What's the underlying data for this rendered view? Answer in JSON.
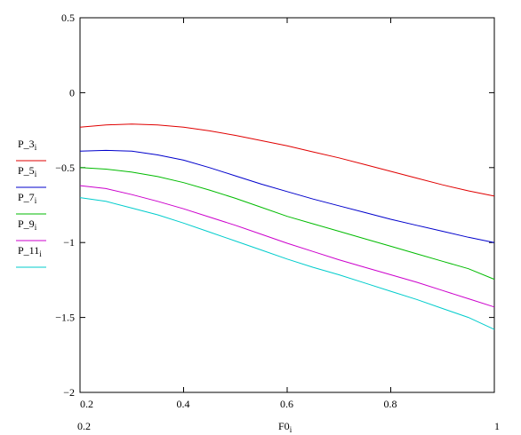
{
  "chart_data": {
    "type": "line",
    "xlabel": "F0",
    "xlabel_sub": "i",
    "x_range_labels": [
      "0.2",
      "1"
    ],
    "xlim": [
      0.2,
      1.0
    ],
    "ylim": [
      -2,
      0.5
    ],
    "x_ticks": [
      0.2,
      0.4,
      0.6,
      0.8
    ],
    "x_tick_labels": [
      "0.2",
      "0.4",
      "0.6",
      "0.8"
    ],
    "y_ticks": [
      0.5,
      0,
      -0.5,
      -1,
      -1.5,
      -2
    ],
    "y_tick_labels": [
      "0.5",
      "0",
      "−0.5",
      "−1",
      "−1.5",
      "−2"
    ],
    "legend_position": "left",
    "grid": false,
    "x": [
      0.2,
      0.25,
      0.3,
      0.35,
      0.4,
      0.45,
      0.5,
      0.55,
      0.6,
      0.65,
      0.7,
      0.75,
      0.8,
      0.85,
      0.9,
      0.95,
      1.0
    ],
    "series": [
      {
        "name": "P_3",
        "sub": "i",
        "color": "#e00000",
        "values": [
          -0.23,
          -0.215,
          -0.21,
          -0.215,
          -0.23,
          -0.255,
          -0.285,
          -0.32,
          -0.355,
          -0.395,
          -0.435,
          -0.48,
          -0.525,
          -0.57,
          -0.615,
          -0.655,
          -0.69
        ]
      },
      {
        "name": "P_5",
        "sub": "i",
        "color": "#0000cc",
        "values": [
          -0.39,
          -0.385,
          -0.39,
          -0.415,
          -0.45,
          -0.5,
          -0.555,
          -0.61,
          -0.66,
          -0.71,
          -0.755,
          -0.8,
          -0.845,
          -0.885,
          -0.925,
          -0.965,
          -1.0
        ]
      },
      {
        "name": "P_7",
        "sub": "i",
        "color": "#00bb00",
        "values": [
          -0.5,
          -0.51,
          -0.53,
          -0.56,
          -0.6,
          -0.65,
          -0.705,
          -0.765,
          -0.825,
          -0.875,
          -0.925,
          -0.975,
          -1.025,
          -1.075,
          -1.125,
          -1.175,
          -1.245
        ]
      },
      {
        "name": "P_9",
        "sub": "i",
        "color": "#cc00cc",
        "values": [
          -0.62,
          -0.64,
          -0.68,
          -0.725,
          -0.775,
          -0.83,
          -0.885,
          -0.945,
          -1.005,
          -1.06,
          -1.115,
          -1.165,
          -1.215,
          -1.265,
          -1.32,
          -1.375,
          -1.43
        ]
      },
      {
        "name": "P_11",
        "sub": "i",
        "color": "#00cccc",
        "values": [
          -0.7,
          -0.725,
          -0.77,
          -0.815,
          -0.87,
          -0.93,
          -0.99,
          -1.05,
          -1.11,
          -1.165,
          -1.215,
          -1.27,
          -1.325,
          -1.38,
          -1.44,
          -1.5,
          -1.58
        ]
      }
    ]
  }
}
